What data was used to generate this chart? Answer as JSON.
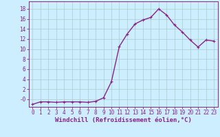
{
  "x": [
    0,
    1,
    2,
    3,
    4,
    5,
    6,
    7,
    8,
    9,
    10,
    11,
    12,
    13,
    14,
    15,
    16,
    17,
    18,
    19,
    20,
    21,
    22,
    23
  ],
  "y": [
    -1.0,
    -0.5,
    -0.5,
    -0.6,
    -0.5,
    -0.5,
    -0.5,
    -0.6,
    -0.4,
    0.3,
    3.5,
    10.5,
    13.0,
    15.0,
    15.8,
    16.3,
    18.0,
    16.8,
    14.8,
    13.4,
    11.8,
    10.4,
    11.8,
    11.6
  ],
  "line_color": "#882288",
  "marker": "+",
  "marker_size": 3,
  "marker_color": "#882288",
  "bg_color": "#cceeff",
  "grid_color": "#aacccc",
  "xlabel": "Windchill (Refroidissement éolien,°C)",
  "xlim": [
    -0.5,
    23.5
  ],
  "ylim": [
    -1.5,
    19.5
  ],
  "ytick_labels": [
    "-0",
    "2",
    "4",
    "6",
    "8",
    "10",
    "12",
    "14",
    "16",
    "18"
  ],
  "ytick_values": [
    0,
    2,
    4,
    6,
    8,
    10,
    12,
    14,
    16,
    18
  ],
  "xticks": [
    0,
    1,
    2,
    3,
    4,
    5,
    6,
    7,
    8,
    9,
    10,
    11,
    12,
    13,
    14,
    15,
    16,
    17,
    18,
    19,
    20,
    21,
    22,
    23
  ],
  "tick_fontsize": 5.5,
  "xlabel_fontsize": 6.5,
  "linewidth": 1.0
}
